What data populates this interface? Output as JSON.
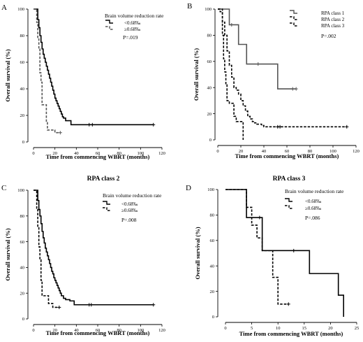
{
  "figure": {
    "panels": [
      {
        "letter": "A",
        "title": "",
        "legend_title": "Brain volume reduction rate",
        "legend_labels": [
          "<0.68‰",
          "≥0.68‰"
        ],
        "p_value": "P=.019"
      },
      {
        "letter": "B",
        "title": "",
        "legend_title": "",
        "legend_labels": [
          "RPA class 1",
          "RPA class 2",
          "RPA class 3"
        ],
        "p_value": "P=.002"
      },
      {
        "letter": "C",
        "title": "RPA class 2",
        "legend_title": "Brain volume reduction rate",
        "legend_labels": [
          "<0.68‰",
          "≥0.68‰"
        ],
        "p_value": "P=.008"
      },
      {
        "letter": "D",
        "title": "RPA class 3",
        "legend_title": "Brain volume reduction rate",
        "legend_labels": [
          "<0.68‰",
          "≥0.68‰"
        ],
        "p_value": "P=.086"
      }
    ]
  },
  "chart_data": [
    {
      "type": "line",
      "subtype": "kaplan-meier step",
      "panel": "A",
      "title": "",
      "xlabel": "Time from commencing WBRT (months)",
      "ylabel": "Overall survival (%)",
      "xlim": [
        0,
        120
      ],
      "ylim": [
        0,
        100
      ],
      "xticks": [
        0,
        20,
        40,
        60,
        80,
        100,
        120
      ],
      "yticks": [
        0,
        20,
        40,
        60,
        80,
        100
      ],
      "legend_title": "Brain volume reduction rate",
      "legend_position": "top-right",
      "annotation": "P=.019",
      "series": [
        {
          "name": "<0.68‰",
          "style": "solid",
          "color": "#000000",
          "x": [
            0,
            3,
            4,
            5,
            6,
            7,
            8,
            9,
            10,
            11,
            12,
            13,
            14,
            15,
            16,
            17,
            18,
            19,
            20,
            21,
            22,
            23,
            24,
            25,
            26,
            27,
            28,
            30,
            35,
            52,
            112
          ],
          "y": [
            100,
            100,
            92,
            86,
            80,
            75,
            70,
            66,
            63,
            60,
            57,
            54,
            51,
            48,
            45,
            42,
            39,
            36,
            33,
            31,
            29,
            27,
            25,
            23,
            21,
            19,
            18,
            16,
            13,
            13,
            13
          ],
          "censor_x": [
            52,
            55,
            112
          ],
          "censor_y": [
            13,
            13,
            13
          ]
        },
        {
          "name": "≥0.68‰",
          "style": "dashed",
          "color": "#555555",
          "x": [
            0,
            2,
            3,
            4,
            5,
            6,
            7,
            8,
            12,
            13,
            20,
            25
          ],
          "y": [
            100,
            100,
            90,
            78,
            70,
            52,
            45,
            28,
            15,
            9,
            7,
            7
          ],
          "censor_x": [
            25
          ],
          "censor_y": [
            7
          ]
        }
      ]
    },
    {
      "type": "line",
      "subtype": "kaplan-meier step",
      "panel": "B",
      "title": "",
      "xlabel": "Time from commencing WBRT (months)",
      "ylabel": "Overall survival (%)",
      "xlim": [
        0,
        120
      ],
      "ylim": [
        0,
        100
      ],
      "xticks": [
        0,
        20,
        40,
        60,
        80,
        100,
        120
      ],
      "yticks": [
        0,
        20,
        40,
        60,
        80,
        100
      ],
      "legend_position": "top-right",
      "annotation": "P=.002",
      "series": [
        {
          "name": "RPA class 1",
          "style": "solid",
          "color": "#555555",
          "x": [
            0,
            5,
            10,
            18,
            25,
            35,
            52,
            68
          ],
          "y": [
            100,
            100,
            88,
            73,
            58,
            58,
            39,
            39
          ],
          "censor_x": [
            12,
            35,
            65,
            68
          ],
          "censor_y": [
            88,
            58,
            39,
            39
          ]
        },
        {
          "name": "RPA class 2",
          "style": "dashed",
          "color": "#000000",
          "x": [
            0,
            2,
            4,
            6,
            8,
            10,
            12,
            14,
            16,
            18,
            20,
            22,
            24,
            26,
            28,
            30,
            32,
            34,
            38,
            40,
            112
          ],
          "y": [
            100,
            98,
            90,
            80,
            68,
            57,
            48,
            40,
            38,
            35,
            30,
            26,
            22,
            18,
            16,
            14,
            13,
            12,
            11,
            10,
            10
          ],
          "censor_x": [
            52,
            54,
            112
          ],
          "censor_y": [
            10,
            10,
            10
          ]
        },
        {
          "name": "RPA class 3",
          "style": "dashed",
          "color": "#000000",
          "x": [
            0,
            3,
            4,
            5,
            6,
            7,
            8,
            10,
            12,
            14,
            16,
            20,
            22
          ],
          "y": [
            100,
            100,
            80,
            62,
            52,
            42,
            30,
            28,
            28,
            18,
            14,
            14,
            0
          ],
          "censor_x": [],
          "censor_y": []
        }
      ]
    },
    {
      "type": "line",
      "subtype": "kaplan-meier step",
      "panel": "C",
      "title": "RPA class 2",
      "xlabel": "Time from commencing WBRT (months)",
      "ylabel": "Overall survival (%)",
      "xlim": [
        0,
        120
      ],
      "ylim": [
        0,
        100
      ],
      "xticks": [
        0,
        20,
        40,
        60,
        80,
        100,
        120
      ],
      "yticks": [
        0,
        20,
        40,
        60,
        80,
        100
      ],
      "legend_title": "Brain volume reduction rate",
      "legend_position": "top-right",
      "annotation": "P=.008",
      "series": [
        {
          "name": "<0.68‰",
          "style": "solid",
          "color": "#000000",
          "x": [
            0,
            3,
            4,
            5,
            6,
            7,
            8,
            9,
            10,
            11,
            12,
            13,
            14,
            15,
            16,
            17,
            18,
            19,
            20,
            21,
            22,
            23,
            24,
            25,
            26,
            28,
            30,
            34,
            38,
            112
          ],
          "y": [
            100,
            100,
            92,
            85,
            80,
            74,
            68,
            63,
            59,
            55,
            52,
            49,
            46,
            43,
            40,
            37,
            35,
            32,
            30,
            28,
            26,
            24,
            22,
            20,
            18,
            16,
            15,
            14,
            11,
            11
          ],
          "censor_x": [
            52,
            54,
            112
          ],
          "censor_y": [
            11,
            11,
            11
          ]
        },
        {
          "name": "≥0.68‰",
          "style": "dashed",
          "color": "#000000",
          "x": [
            0,
            2,
            3,
            4,
            5,
            6,
            7,
            8,
            12,
            14,
            18,
            24
          ],
          "y": [
            100,
            100,
            86,
            72,
            56,
            46,
            30,
            18,
            18,
            12,
            9,
            9
          ],
          "censor_x": [
            24
          ],
          "censor_y": [
            9
          ]
        }
      ]
    },
    {
      "type": "line",
      "subtype": "kaplan-meier step",
      "panel": "D",
      "title": "RPA class 3",
      "xlabel": "Time from commencing WBRT (months)",
      "ylabel": "Overall survival (%)",
      "xlim": [
        0,
        25
      ],
      "ylim": [
        0,
        100
      ],
      "xticks": [
        0,
        5,
        10,
        15,
        20,
        25
      ],
      "yticks": [
        0,
        20,
        40,
        60,
        80,
        100
      ],
      "legend_title": "Brain volume reduction rate",
      "legend_position": "top-right",
      "annotation": "P=.086",
      "series": [
        {
          "name": "<0.68‰",
          "style": "solid",
          "color": "#000000",
          "x": [
            0,
            3,
            4,
            6.5,
            7,
            16,
            21.5,
            22.5
          ],
          "y": [
            100,
            100,
            78,
            78,
            52,
            34,
            17,
            0
          ],
          "censor_x": [
            6.5,
            13
          ],
          "censor_y": [
            78,
            52
          ]
        },
        {
          "name": "≥0.68‰",
          "style": "dashed",
          "color": "#000000",
          "x": [
            0,
            3,
            4,
            5,
            6,
            7,
            9,
            10,
            12
          ],
          "y": [
            100,
            100,
            86,
            72,
            62,
            52,
            31,
            10,
            10
          ],
          "censor_x": [
            12
          ],
          "censor_y": [
            10
          ]
        }
      ]
    }
  ]
}
